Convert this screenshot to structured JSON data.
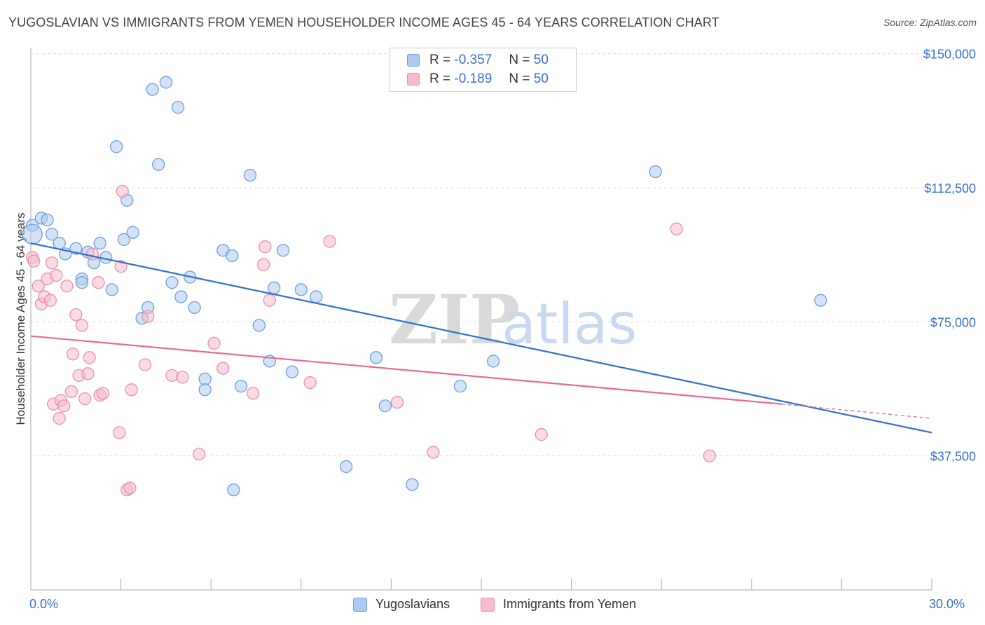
{
  "title": "YUGOSLAVIAN VS IMMIGRANTS FROM YEMEN HOUSEHOLDER INCOME AGES 45 - 64 YEARS CORRELATION CHART",
  "source": "Source: ZipAtlas.com",
  "watermark": "ZIPatlas",
  "legend": {
    "rows": [
      {
        "r_label": "R =",
        "r_value": "-0.357",
        "n_label": "N =",
        "n_value": "50"
      },
      {
        "r_label": "R =",
        "r_value": "-0.189",
        "n_label": "N =",
        "n_value": "50"
      }
    ]
  },
  "colors": {
    "blue_fill": "#aecbef",
    "blue_stroke": "#6f9fd8",
    "blue_line": "#2f6fd0",
    "pink_fill": "#f7bccd",
    "pink_stroke": "#e890ad",
    "pink_line": "#e46a93",
    "axis_text": "#3b6fd4",
    "grid": "#dddddd"
  },
  "chart_data": {
    "type": "scatter",
    "title": "YUGOSLAVIAN VS IMMIGRANTS FROM YEMEN HOUSEHOLDER INCOME AGES 45 - 64 YEARS CORRELATION CHART",
    "xlabel": "",
    "ylabel": "Householder Income Ages 45 - 64 years",
    "xlim": [
      0,
      30
    ],
    "ylim": [
      0,
      155000
    ],
    "x_tick_labels": [
      "0.0%",
      "30.0%"
    ],
    "y_ticks": [
      {
        "value": 37500,
        "label": "$37,500"
      },
      {
        "value": 75000,
        "label": "$75,000"
      },
      {
        "value": 112500,
        "label": "$112,500"
      },
      {
        "value": 150000,
        "label": "$150,000"
      }
    ],
    "grid": true,
    "legend_position": "bottom",
    "series": [
      {
        "name": "Yugoslavians",
        "color": "#aecbef",
        "trend": {
          "x0": 0,
          "y0": 97000,
          "x1": 30,
          "y1": 44000
        },
        "points": [
          [
            0.05,
            102000
          ],
          [
            0.35,
            104000
          ],
          [
            0.55,
            103500
          ],
          [
            0.7,
            99500
          ],
          [
            0.95,
            97000
          ],
          [
            1.15,
            94000
          ],
          [
            1.5,
            95500
          ],
          [
            1.7,
            87000
          ],
          [
            1.7,
            86000
          ],
          [
            1.9,
            94500
          ],
          [
            2.1,
            91500
          ],
          [
            2.3,
            97000
          ],
          [
            2.5,
            93000
          ],
          [
            2.7,
            84000
          ],
          [
            2.85,
            124000
          ],
          [
            3.1,
            98000
          ],
          [
            3.2,
            109000
          ],
          [
            3.4,
            100000
          ],
          [
            3.7,
            76000
          ],
          [
            3.9,
            79000
          ],
          [
            4.05,
            140000
          ],
          [
            4.25,
            119000
          ],
          [
            4.5,
            142000
          ],
          [
            4.7,
            86000
          ],
          [
            4.9,
            135000
          ],
          [
            5.0,
            82000
          ],
          [
            5.3,
            87500
          ],
          [
            5.45,
            79000
          ],
          [
            5.8,
            59000
          ],
          [
            5.8,
            56000
          ],
          [
            6.4,
            95000
          ],
          [
            6.7,
            93500
          ],
          [
            6.75,
            28000
          ],
          [
            7.0,
            57000
          ],
          [
            7.3,
            116000
          ],
          [
            7.6,
            74000
          ],
          [
            7.95,
            64000
          ],
          [
            8.1,
            84500
          ],
          [
            8.4,
            95000
          ],
          [
            8.7,
            61000
          ],
          [
            9.0,
            84000
          ],
          [
            9.5,
            82000
          ],
          [
            10.5,
            34500
          ],
          [
            11.5,
            65000
          ],
          [
            11.8,
            51500
          ],
          [
            12.7,
            29500
          ],
          [
            14.3,
            57000
          ],
          [
            15.4,
            64000
          ],
          [
            20.8,
            117000
          ],
          [
            26.3,
            81000
          ]
        ]
      },
      {
        "name": "Immigrants from Yemen",
        "color": "#f7bccd",
        "trend": {
          "x0": 0,
          "y0": 71000,
          "x1": 25.0,
          "y1": 52000,
          "dash_x1": 30,
          "dash_y1": 48000
        },
        "points": [
          [
            0.05,
            93000
          ],
          [
            0.1,
            92000
          ],
          [
            0.25,
            85000
          ],
          [
            0.35,
            80000
          ],
          [
            0.45,
            82000
          ],
          [
            0.55,
            87000
          ],
          [
            0.65,
            81000
          ],
          [
            0.75,
            52000
          ],
          [
            0.7,
            91500
          ],
          [
            0.85,
            88000
          ],
          [
            0.95,
            48000
          ],
          [
            1.0,
            53000
          ],
          [
            1.1,
            51500
          ],
          [
            1.2,
            85000
          ],
          [
            1.35,
            55500
          ],
          [
            1.4,
            66000
          ],
          [
            1.5,
            77000
          ],
          [
            1.6,
            60000
          ],
          [
            1.7,
            74000
          ],
          [
            1.8,
            53500
          ],
          [
            1.9,
            60500
          ],
          [
            1.95,
            65000
          ],
          [
            2.05,
            94000
          ],
          [
            2.25,
            86000
          ],
          [
            2.3,
            54500
          ],
          [
            2.4,
            55000
          ],
          [
            2.95,
            44000
          ],
          [
            3.0,
            90500
          ],
          [
            3.05,
            111500
          ],
          [
            3.2,
            28000
          ],
          [
            3.3,
            28500
          ],
          [
            3.35,
            56000
          ],
          [
            3.8,
            63000
          ],
          [
            3.9,
            76500
          ],
          [
            4.7,
            60000
          ],
          [
            5.05,
            59500
          ],
          [
            5.6,
            38000
          ],
          [
            6.1,
            69000
          ],
          [
            6.4,
            62000
          ],
          [
            7.4,
            55000
          ],
          [
            7.75,
            91000
          ],
          [
            7.8,
            96000
          ],
          [
            7.95,
            81000
          ],
          [
            9.3,
            58000
          ],
          [
            9.95,
            97500
          ],
          [
            12.2,
            52500
          ],
          [
            13.4,
            38500
          ],
          [
            17.0,
            43500
          ],
          [
            21.5,
            101000
          ],
          [
            22.6,
            37500
          ]
        ]
      }
    ]
  }
}
